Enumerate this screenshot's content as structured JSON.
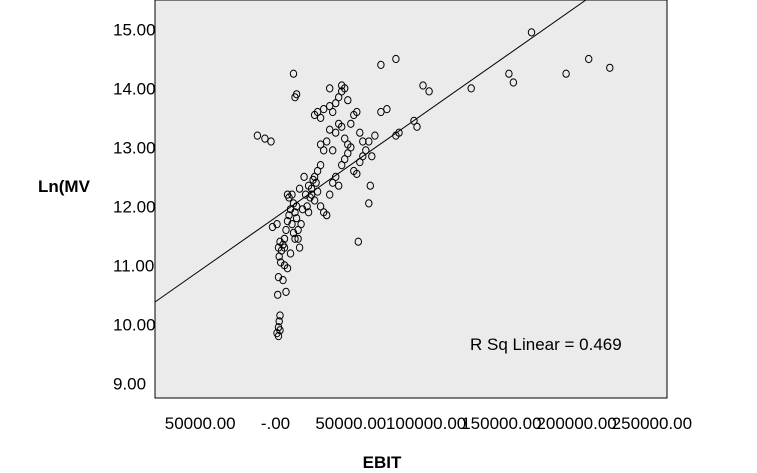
{
  "chart_data": {
    "type": "scatter",
    "title": "",
    "xlabel": "EBIT",
    "ylabel": "Ln(MV",
    "xlim": [
      -80000,
      260000
    ],
    "ylim": [
      8.75,
      15.5
    ],
    "grid": false,
    "background": "#ebebeb",
    "marker": "open-circle",
    "x_ticks": [
      "50000.00",
      "-.00",
      "50000.00",
      "100000.00",
      "150000.00",
      "200000.00",
      "250000.00"
    ],
    "y_ticks": [
      "9.00",
      "10.00",
      "11.00",
      "12.00",
      "13.00",
      "14.00",
      "15.00"
    ],
    "fit_line": {
      "label": "R Sq Linear = 0.469",
      "intercept": 11.81,
      "slope": 1.79e-05
    },
    "points": [
      [
        -12000,
        13.2
      ],
      [
        -7000,
        13.15
      ],
      [
        -3000,
        13.1
      ],
      [
        -2000,
        11.65
      ],
      [
        1000,
        11.7
      ],
      [
        2000,
        11.3
      ],
      [
        2500,
        11.15
      ],
      [
        3000,
        11.4
      ],
      [
        3500,
        11.05
      ],
      [
        2000,
        10.8
      ],
      [
        1500,
        10.5
      ],
      [
        3000,
        10.15
      ],
      [
        2500,
        10.05
      ],
      [
        2000,
        9.95
      ],
      [
        3000,
        9.9
      ],
      [
        1000,
        9.85
      ],
      [
        2000,
        9.8
      ],
      [
        4000,
        11.25
      ],
      [
        5000,
        11.35
      ],
      [
        6000,
        11.45
      ],
      [
        6000,
        11.0
      ],
      [
        5000,
        10.75
      ],
      [
        7000,
        10.55
      ],
      [
        8000,
        10.95
      ],
      [
        6000,
        11.3
      ],
      [
        7000,
        11.6
      ],
      [
        8000,
        11.75
      ],
      [
        9000,
        11.85
      ],
      [
        10000,
        11.95
      ],
      [
        11000,
        11.7
      ],
      [
        12000,
        11.55
      ],
      [
        13000,
        11.45
      ],
      [
        10000,
        11.2
      ],
      [
        8000,
        12.2
      ],
      [
        9000,
        12.15
      ],
      [
        11000,
        12.2
      ],
      [
        12000,
        12.05
      ],
      [
        13000,
        11.9
      ],
      [
        14000,
        11.8
      ],
      [
        15000,
        11.45
      ],
      [
        16000,
        11.3
      ],
      [
        15000,
        11.6
      ],
      [
        17000,
        11.7
      ],
      [
        18000,
        11.95
      ],
      [
        14000,
        12.0
      ],
      [
        16000,
        12.3
      ],
      [
        19000,
        12.5
      ],
      [
        20000,
        12.2
      ],
      [
        22000,
        11.9
      ],
      [
        21000,
        12.0
      ],
      [
        23000,
        12.15
      ],
      [
        24000,
        12.3
      ],
      [
        25000,
        12.45
      ],
      [
        26000,
        12.5
      ],
      [
        27000,
        12.4
      ],
      [
        28000,
        12.6
      ],
      [
        30000,
        12.7
      ],
      [
        22000,
        12.35
      ],
      [
        24000,
        12.2
      ],
      [
        26000,
        12.1
      ],
      [
        28000,
        12.25
      ],
      [
        30000,
        12.0
      ],
      [
        32000,
        11.9
      ],
      [
        34000,
        11.85
      ],
      [
        36000,
        12.2
      ],
      [
        38000,
        12.4
      ],
      [
        40000,
        12.5
      ],
      [
        42000,
        12.35
      ],
      [
        44000,
        12.7
      ],
      [
        46000,
        12.8
      ],
      [
        48000,
        12.9
      ],
      [
        50000,
        13.0
      ],
      [
        52000,
        12.6
      ],
      [
        54000,
        12.55
      ],
      [
        56000,
        12.75
      ],
      [
        58000,
        12.85
      ],
      [
        60000,
        12.95
      ],
      [
        62000,
        13.1
      ],
      [
        64000,
        12.85
      ],
      [
        66000,
        13.2
      ],
      [
        30000,
        13.05
      ],
      [
        32000,
        12.95
      ],
      [
        34000,
        13.1
      ],
      [
        36000,
        13.3
      ],
      [
        38000,
        12.95
      ],
      [
        40000,
        13.25
      ],
      [
        42000,
        13.4
      ],
      [
        44000,
        13.35
      ],
      [
        46000,
        13.15
      ],
      [
        48000,
        13.05
      ],
      [
        50000,
        13.4
      ],
      [
        52000,
        13.55
      ],
      [
        54000,
        13.6
      ],
      [
        56000,
        13.25
      ],
      [
        58000,
        13.1
      ],
      [
        26000,
        13.55
      ],
      [
        28000,
        13.6
      ],
      [
        30000,
        13.5
      ],
      [
        32000,
        13.65
      ],
      [
        36000,
        13.7
      ],
      [
        38000,
        13.6
      ],
      [
        40000,
        13.75
      ],
      [
        42000,
        13.85
      ],
      [
        44000,
        13.95
      ],
      [
        46000,
        14.0
      ],
      [
        48000,
        13.8
      ],
      [
        13000,
        13.85
      ],
      [
        14000,
        13.9
      ],
      [
        12000,
        14.25
      ],
      [
        36000,
        14.0
      ],
      [
        44000,
        14.05
      ],
      [
        70000,
        14.4
      ],
      [
        80000,
        14.5
      ],
      [
        70000,
        13.6
      ],
      [
        74000,
        13.65
      ],
      [
        80000,
        13.2
      ],
      [
        82000,
        13.25
      ],
      [
        92000,
        13.45
      ],
      [
        94000,
        13.35
      ],
      [
        98000,
        14.05
      ],
      [
        102000,
        13.95
      ],
      [
        55000,
        11.4
      ],
      [
        62000,
        12.05
      ],
      [
        63000,
        12.35
      ],
      [
        130000,
        14.0
      ],
      [
        155000,
        14.25
      ],
      [
        158000,
        14.1
      ],
      [
        170000,
        14.95
      ],
      [
        193000,
        14.25
      ],
      [
        208000,
        14.5
      ],
      [
        222000,
        14.35
      ]
    ]
  }
}
